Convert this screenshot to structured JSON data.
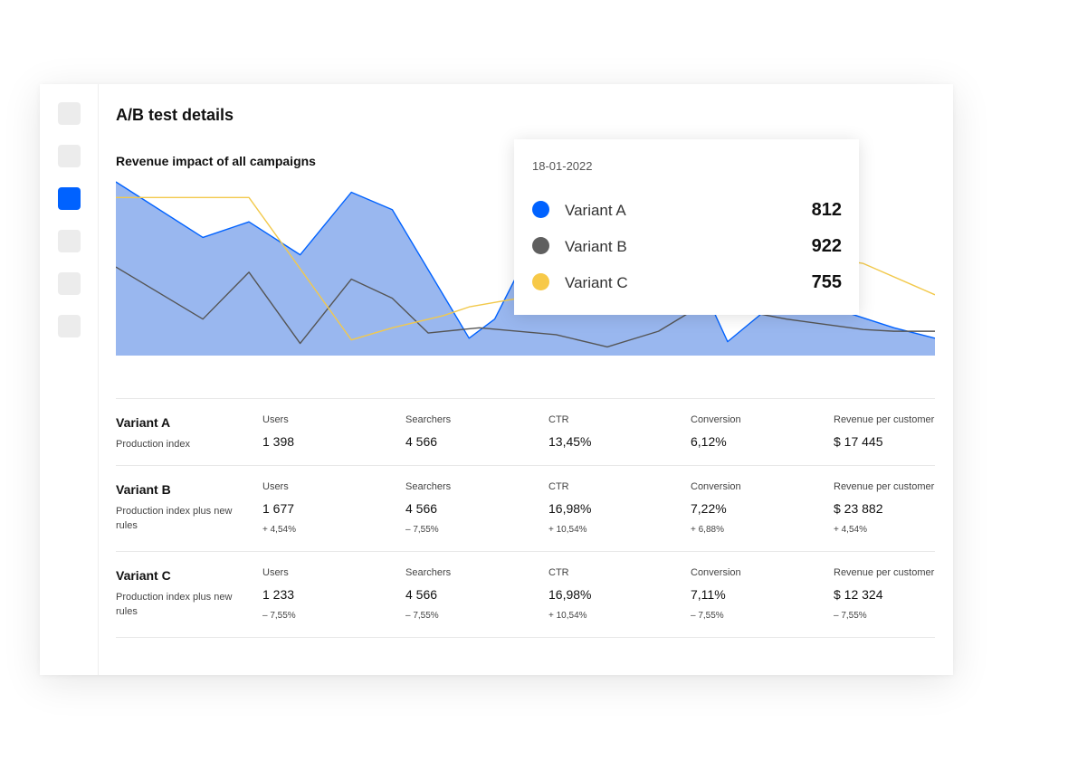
{
  "page": {
    "title": "A/B test details"
  },
  "sidebar": {
    "items": [
      {
        "icon": "nav-item-1",
        "active": false
      },
      {
        "icon": "nav-item-2",
        "active": false
      },
      {
        "icon": "nav-item-3",
        "active": true
      },
      {
        "icon": "nav-item-4",
        "active": false
      },
      {
        "icon": "nav-item-5",
        "active": false
      },
      {
        "icon": "nav-item-6",
        "active": false
      }
    ],
    "active_color": "#0062ff",
    "inactive_color": "#ececec"
  },
  "chart_data": {
    "type": "line",
    "title": "Revenue impact of all campaigns",
    "x": [
      1,
      2,
      3,
      4,
      5,
      6,
      7,
      8,
      9,
      10,
      11,
      12,
      13,
      14,
      15,
      16,
      17
    ],
    "ylim": [
      0,
      1
    ],
    "grid": false,
    "series": [
      {
        "name": "Variant A",
        "color": "#0062ff",
        "area_color": "#99b7ef",
        "fill": true,
        "points": [
          [
            1,
            1.0
          ],
          [
            2.7,
            0.68
          ],
          [
            3.6,
            0.77
          ],
          [
            4.6,
            0.58
          ],
          [
            5.6,
            0.94
          ],
          [
            6.4,
            0.84
          ],
          [
            7.9,
            0.1
          ],
          [
            8.4,
            0.21
          ],
          [
            8.9,
            0.5
          ],
          [
            12.2,
            0.56
          ],
          [
            12.95,
            0.08
          ],
          [
            14.1,
            0.36
          ],
          [
            16.2,
            0.16
          ],
          [
            17,
            0.1
          ]
        ]
      },
      {
        "name": "Variant B",
        "color": "#555555",
        "fill": false,
        "points": [
          [
            1,
            0.51
          ],
          [
            2.7,
            0.21
          ],
          [
            3.6,
            0.48
          ],
          [
            4.6,
            0.07
          ],
          [
            5.6,
            0.44
          ],
          [
            6.4,
            0.33
          ],
          [
            7.1,
            0.13
          ],
          [
            8.1,
            0.16
          ],
          [
            9.6,
            0.12
          ],
          [
            10.6,
            0.05
          ],
          [
            11.6,
            0.14
          ],
          [
            12.5,
            0.3
          ],
          [
            14.1,
            0.21
          ],
          [
            15.6,
            0.15
          ],
          [
            16.2,
            0.14
          ],
          [
            17,
            0.14
          ]
        ]
      },
      {
        "name": "Variant C",
        "color": "#f2c94c",
        "fill": false,
        "points": [
          [
            1,
            0.91
          ],
          [
            3.6,
            0.91
          ],
          [
            5.6,
            0.09
          ],
          [
            6.4,
            0.16
          ],
          [
            7.4,
            0.23
          ],
          [
            7.9,
            0.28
          ],
          [
            14.1,
            0.6
          ],
          [
            15.6,
            0.53
          ],
          [
            17,
            0.35
          ]
        ]
      }
    ]
  },
  "tooltip": {
    "date": "18-01-2022",
    "items": [
      {
        "name": "Variant A",
        "value": "812",
        "color": "#0062ff"
      },
      {
        "name": "Variant B",
        "value": "922",
        "color": "#5f5f5f"
      },
      {
        "name": "Variant C",
        "value": "755",
        "color": "#f7c948"
      }
    ]
  },
  "table": {
    "rows": [
      {
        "name": "Variant A",
        "description": "Production index",
        "metrics": [
          {
            "label": "Users",
            "value": "1 398"
          },
          {
            "label": "Searchers",
            "value": "4 566"
          },
          {
            "label": "CTR",
            "value": "13,45%"
          },
          {
            "label": "Conversion",
            "value": "6,12%"
          },
          {
            "label": "Revenue per customer",
            "value": "$ 17 445"
          }
        ]
      },
      {
        "name": "Variant B",
        "description": "Production index plus new rules",
        "metrics": [
          {
            "label": "Users",
            "value": "1 677",
            "delta": "+ 4,54%"
          },
          {
            "label": "Searchers",
            "value": "4 566",
            "delta": "– 7,55%"
          },
          {
            "label": "CTR",
            "value": "16,98%",
            "delta": "+ 10,54%"
          },
          {
            "label": "Conversion",
            "value": "7,22%",
            "delta": "+ 6,88%"
          },
          {
            "label": "Revenue per customer",
            "value": "$ 23 882",
            "delta": "+ 4,54%"
          }
        ]
      },
      {
        "name": "Variant C",
        "description": "Production index plus new rules",
        "metrics": [
          {
            "label": "Users",
            "value": "1 233",
            "delta": "– 7,55%"
          },
          {
            "label": "Searchers",
            "value": "4 566",
            "delta": "– 7,55%"
          },
          {
            "label": "CTR",
            "value": "16,98%",
            "delta": "+ 10,54%"
          },
          {
            "label": "Conversion",
            "value": "7,11%",
            "delta": "– 7,55%"
          },
          {
            "label": "Revenue per customer",
            "value": "$ 12 324",
            "delta": "– 7,55%"
          }
        ]
      }
    ]
  }
}
